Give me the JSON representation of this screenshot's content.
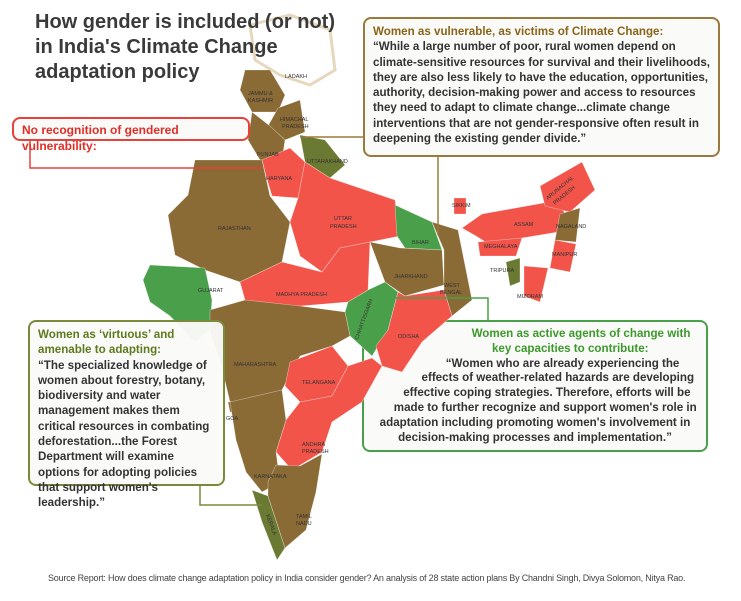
{
  "title": [
    "How gender is included (or not)",
    "in India's Climate Change",
    "adaptation policy"
  ],
  "colors": {
    "no_recognition": "#f2544a",
    "vulnerable": "#8a6a35",
    "virtuous": "#6b7a32",
    "active_agents": "#4aa04a",
    "ladakh": "#ffffff"
  },
  "callouts": {
    "no_recognition": {
      "heading": "No recognition of gendered vulnerability:"
    },
    "vulnerable": {
      "heading": "Women as vulnerable, as victims of Climate Change:",
      "quote": "“While a large number of poor, rural women depend on climate-sensitive resources for survival and their livelihoods, they are also less likely to have the education, opportunities, authority, decision-making power and access to resources they need to adapt to climate change...climate change interventions that are not gender-responsive often result in deepening the existing gender divide.”"
    },
    "virtuous": {
      "heading": "Women as ‘virtuous’ and amenable to adapting:",
      "quote": "“The specialized knowledge of women about forestry, botany, biodiversity and water management makes them critical resources in combating deforestation...the Forest Department will examine options for adopting policies that support women's leadership.”"
    },
    "active_agents": {
      "heading": "Women as active agents of change with key capacities to contribute:",
      "quote": "“Women who are already experiencing the effects of weather-related hazards are developing effective coping strategies. Therefore, efforts will be made to further recognize and support women's role in adaptation including promoting women's involvement in decision-making processes and implementation.”"
    }
  },
  "states": {
    "ladakh": "LADAKH",
    "jk": "JAMMU &",
    "jk2": "KASHMIR",
    "hp": "HIMACHAL",
    "hp2": "PRADESH",
    "punjab": "PUNJAB",
    "uttarakhand": "UTTARAKHAND",
    "haryana": "HARYANA",
    "rajasthan": "RAJASTHAN",
    "up": "UTTAR",
    "up2": "PRADESH",
    "bihar": "BIHAR",
    "sikkim": "SIKKIM",
    "arunachal": "ARUNACHAL",
    "arunachal2": "PRADESH",
    "assam": "ASSAM",
    "nagaland": "NAGALAND",
    "meghalaya": "MEGHALAYA",
    "manipur": "MANIPUR",
    "tripura": "TRIPURA",
    "mizoram": "MIZORAM",
    "gujarat": "GUJARAT",
    "mp": "MADHYA PRADESH",
    "jharkhand": "JHARKHAND",
    "wb": "WEST",
    "wb2": "BENGAL",
    "chhattisgarh": "CHHATTISGARH",
    "odisha": "ODISHA",
    "maharashtra": "MAHARASHTRA",
    "telangana": "TELANGANA",
    "goa": "GOA",
    "ap": "ANDHRA",
    "ap2": "PRADESH",
    "karnataka": "KARNATAKA",
    "tn": "TAMIL",
    "tn2": "NADU",
    "kerala": "KERALA"
  },
  "source": "Source Report: How does climate change adaptation policy in India consider gender? An analysis of 28 state action plans By Chandni Singh, Divya Solomon, Nitya Rao."
}
